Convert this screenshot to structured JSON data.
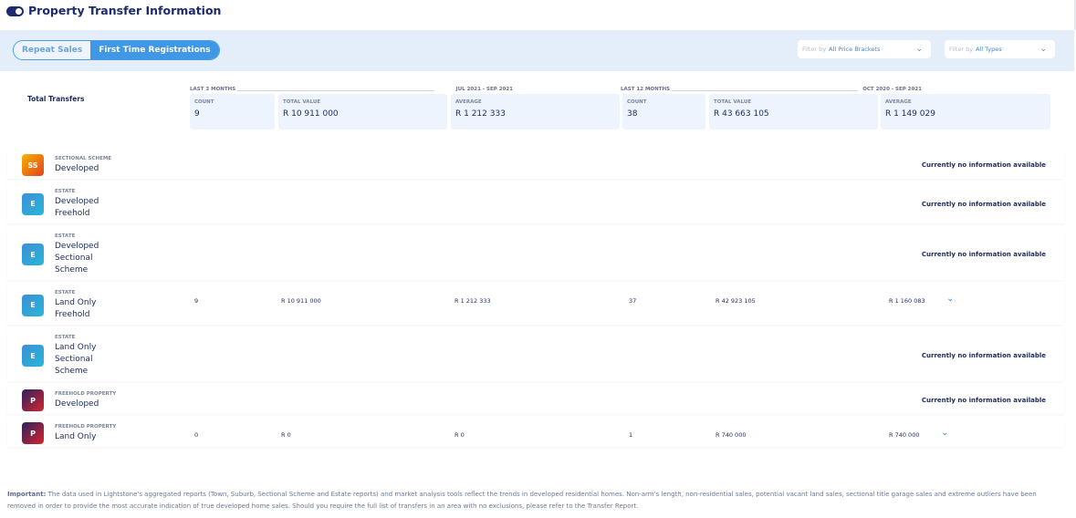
{
  "header": {
    "title": "Property Transfer Information"
  },
  "tabs": [
    {
      "label": "Repeat Sales",
      "active": false
    },
    {
      "label": "First Time Registrations",
      "active": true
    }
  ],
  "filters": [
    {
      "label": "Filter by",
      "value": "All Price Brackets"
    },
    {
      "label": "Filter by",
      "value": "All Types"
    }
  ],
  "summary": {
    "title": "Total Transfers",
    "last3": {
      "period": "LAST 3 MONTHS",
      "range": "JUL 2021 - SEP 2021",
      "count_label": "COUNT",
      "count": "9",
      "total_label": "TOTAL VALUE",
      "total": "R 10 911 000",
      "avg_label": "AVERAGE",
      "avg": "R 1 212 333"
    },
    "last12": {
      "period": "LAST 12 MONTHS",
      "range": "OCT 2020 - SEP 2021",
      "count_label": "COUNT",
      "count": "38",
      "total_label": "TOTAL VALUE",
      "total": "R 43 663 105",
      "avg_label": "AVERAGE",
      "avg": "R 1 149 029"
    }
  },
  "no_info": "Currently no information available",
  "rows": [
    {
      "icon": "SS",
      "category": "SECTIONAL SCHEME",
      "name": [
        "Developed"
      ]
    },
    {
      "icon": "E",
      "category": "ESTATE",
      "name": [
        "Developed",
        "Freehold"
      ]
    },
    {
      "icon": "E",
      "category": "ESTATE",
      "name": [
        "Developed",
        "Sectional",
        "Scheme"
      ]
    },
    {
      "icon": "E",
      "category": "ESTATE",
      "name": [
        "Land Only",
        "Freehold"
      ],
      "values": [
        "9",
        "R 10 911 000",
        "R 1 212 333",
        "37",
        "R 42 923 105",
        "R 1 160 083"
      ]
    },
    {
      "icon": "E",
      "category": "ESTATE",
      "name": [
        "Land Only",
        "Sectional",
        "Scheme"
      ]
    },
    {
      "icon": "P",
      "category": "FREEHOLD PROPERTY",
      "name": [
        "Developed"
      ]
    },
    {
      "icon": "P",
      "category": "FREEHOLD PROPERTY",
      "name": [
        "Land Only"
      ],
      "values": [
        "0",
        "R 0",
        "R 0",
        "1",
        "R 740 000",
        "R 740 000"
      ]
    }
  ],
  "footer": {
    "bold": "Important:",
    "text": " The data used in Lightstone's aggregated reports (Town, Suburb, Sectional Scheme and Estate reports) and market analysis tools reflect the trends in developed residential homes. Non-arm's length, non-residential sales, potential vacant land sales, sectional title garage sales and extreme outliers have been removed in order to provide the most accurate indication of true developed home sales. Should you require the full list of transfers in an area with no exclusions, please refer to the Transfer Report."
  },
  "colors": {
    "accent": "#3f97e5",
    "navy": "#1c2b6e",
    "band": "#e3eefa"
  }
}
